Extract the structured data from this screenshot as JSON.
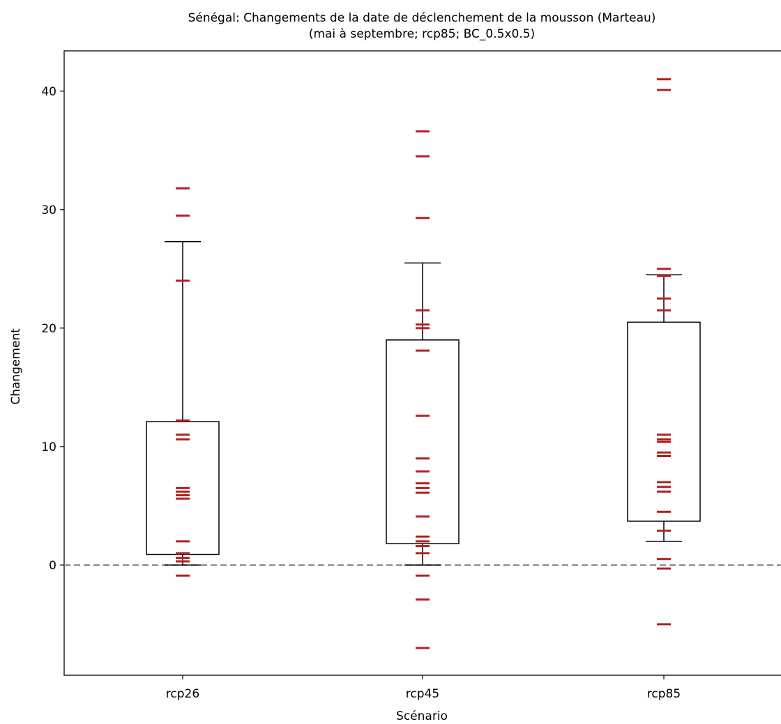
{
  "chart_data": {
    "type": "box",
    "title": "Sénégal: Changements de la date de déclenchement de la mousson (Marteau)",
    "subtitle": "(mai à septembre; rcp85; BC_0.5x0.5)",
    "xlabel": "Scénario",
    "ylabel": "Changement",
    "categories": [
      "rcp26",
      "rcp45",
      "rcp85"
    ],
    "yticks": [
      0,
      10,
      20,
      30,
      40
    ],
    "ylim": [
      -9.3,
      43.4
    ],
    "reference_line": 0,
    "colors": {
      "marker": "#b22222",
      "box": "#000000",
      "reference_line": "#808080"
    },
    "boxes": [
      {
        "category": "rcp26",
        "whisker_low": 0,
        "q1": 0.9,
        "q3": 12.1,
        "whisker_high": 27.3
      },
      {
        "category": "rcp45",
        "whisker_low": 0,
        "q1": 1.8,
        "q3": 19.0,
        "whisker_high": 25.5
      },
      {
        "category": "rcp85",
        "whisker_low": 2.0,
        "q1": 3.7,
        "q3": 20.5,
        "whisker_high": 24.5
      }
    ],
    "points": [
      {
        "category": "rcp26",
        "values": [
          31.8,
          29.5,
          24.0,
          12.2,
          11.0,
          10.6,
          6.5,
          6.2,
          5.9,
          5.6,
          2.0,
          1.0,
          0.6,
          0.3,
          -0.9
        ]
      },
      {
        "category": "rcp45",
        "values": [
          36.6,
          34.5,
          29.3,
          21.5,
          20.3,
          20.0,
          18.1,
          12.6,
          9.0,
          7.9,
          6.9,
          6.5,
          6.1,
          4.1,
          2.4,
          2.0,
          1.6,
          1.0,
          -0.9,
          -2.9,
          -7.0
        ]
      },
      {
        "category": "rcp85",
        "values": [
          41.0,
          40.1,
          25.0,
          24.4,
          22.5,
          21.5,
          11.0,
          10.6,
          10.4,
          9.5,
          9.2,
          7.0,
          6.6,
          6.2,
          4.5,
          2.9,
          0.5,
          -0.3,
          -5.0
        ]
      }
    ]
  }
}
